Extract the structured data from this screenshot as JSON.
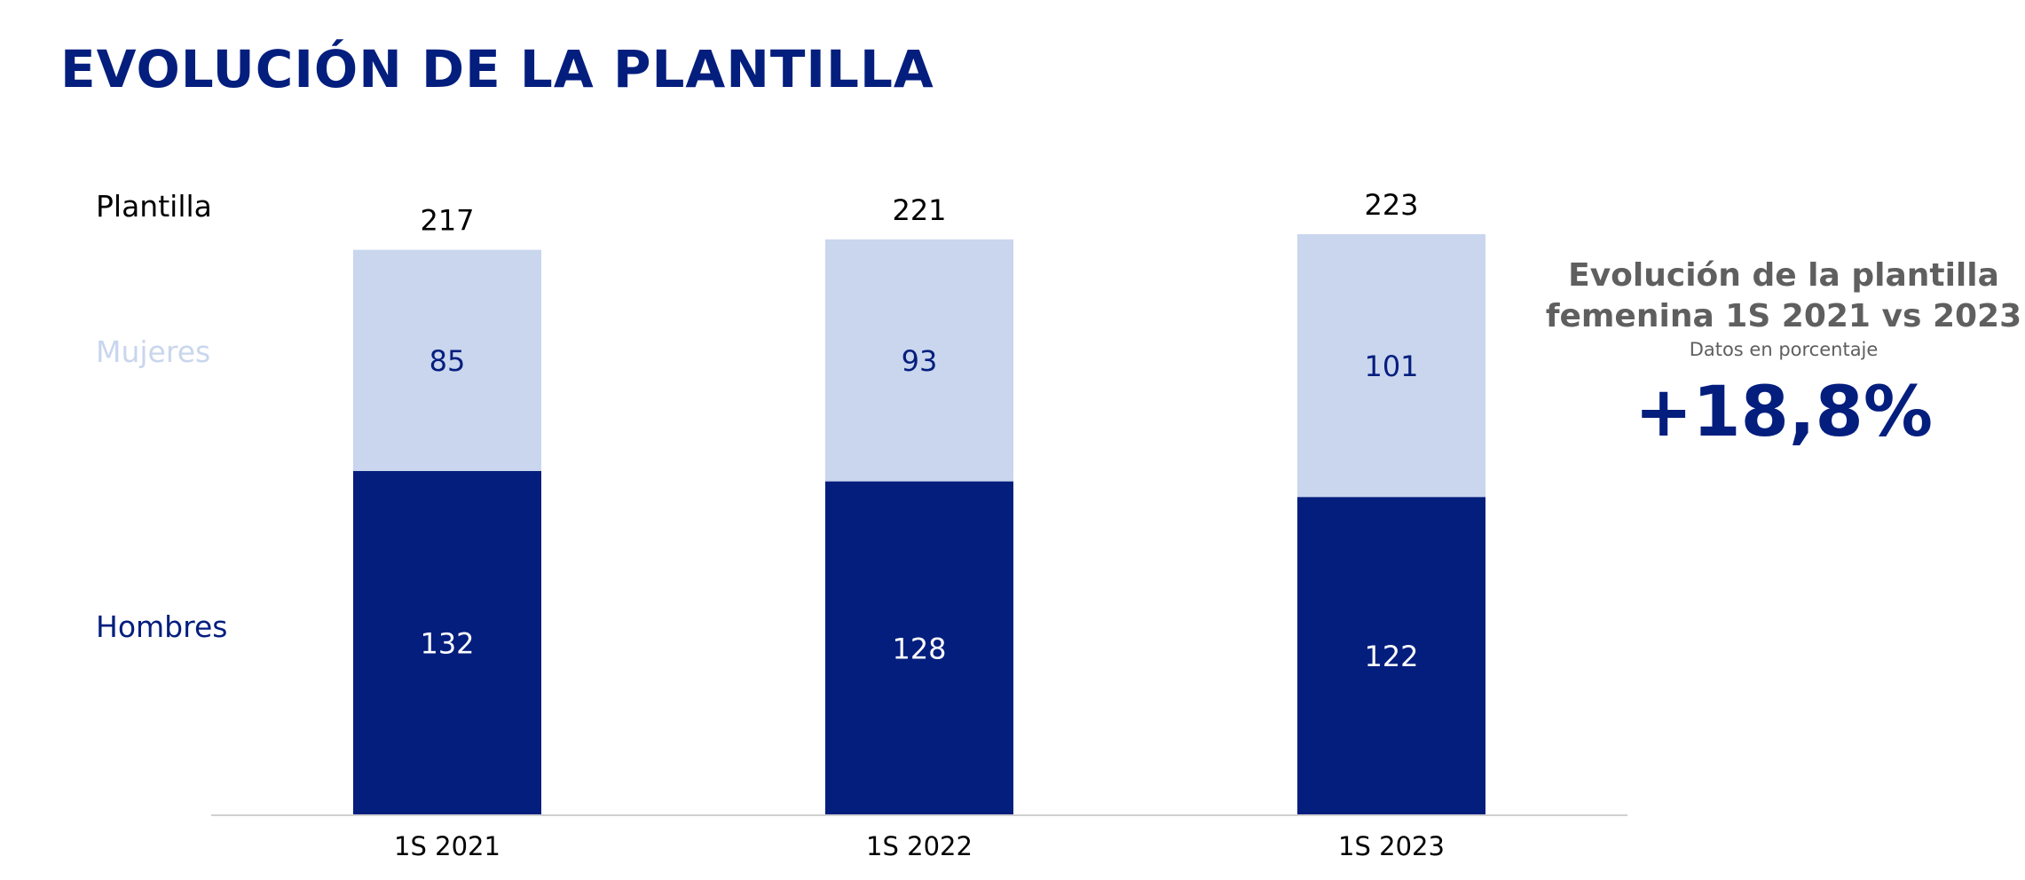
{
  "title": "EVOLUCIÓN DE LA PLANTILLA",
  "chart_data": {
    "type": "bar",
    "stacked": true,
    "categories": [
      "1S 2021",
      "1S 2022",
      "1S 2023"
    ],
    "series": [
      {
        "name": "Hombres",
        "values": [
          132,
          128,
          122
        ],
        "color": "#041e7e",
        "label_color": "#ffffff"
      },
      {
        "name": "Mujeres",
        "values": [
          85,
          93,
          101
        ],
        "color": "#c9d6ed",
        "label_color": "#041e7e"
      }
    ],
    "totals_label": "Plantilla",
    "totals": [
      217,
      221,
      223
    ],
    "legend": "left",
    "ylim": [
      0,
      223
    ],
    "grid": false
  },
  "side_panel": {
    "title_line1": "Evolución de la plantilla",
    "title_line2": "femenina 1S 2021 vs 2023",
    "subtitle": "Datos en porcentaje",
    "kpi": "+18,8%"
  },
  "colors": {
    "accent": "#041e7e",
    "light": "#c9d6ed",
    "muted": "#5f5f5f"
  }
}
